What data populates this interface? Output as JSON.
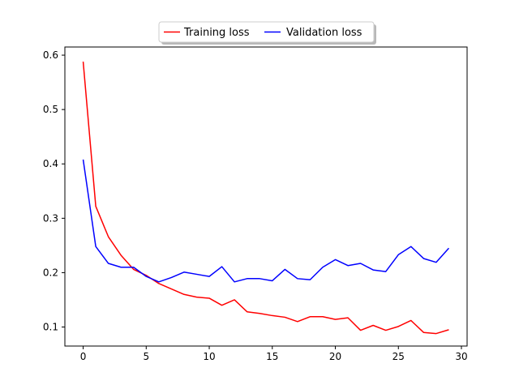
{
  "chart_data": {
    "type": "line",
    "title": "",
    "xlabel": "",
    "ylabel": "",
    "xlim": [
      -1.45,
      30.45
    ],
    "ylim": [
      0.065,
      0.615
    ],
    "xticks": [
      0,
      5,
      10,
      15,
      20,
      25,
      30
    ],
    "yticks": [
      0.1,
      0.2,
      0.3,
      0.4,
      0.5,
      0.6
    ],
    "grid": false,
    "legend": {
      "placement": "top-center-outside",
      "ncol": 2
    },
    "x": [
      0,
      1,
      2,
      3,
      4,
      5,
      6,
      7,
      8,
      9,
      10,
      11,
      12,
      13,
      14,
      15,
      16,
      17,
      18,
      19,
      20,
      21,
      22,
      23,
      24,
      25,
      26,
      27,
      28,
      29
    ],
    "series": [
      {
        "name": "Training loss",
        "color": "#ff0000",
        "values": [
          0.588,
          0.322,
          0.266,
          0.232,
          0.206,
          0.195,
          0.18,
          0.17,
          0.16,
          0.155,
          0.153,
          0.14,
          0.15,
          0.128,
          0.125,
          0.121,
          0.118,
          0.11,
          0.119,
          0.119,
          0.114,
          0.117,
          0.094,
          0.103,
          0.094,
          0.101,
          0.112,
          0.09,
          0.088,
          0.095
        ]
      },
      {
        "name": "Validation loss",
        "color": "#0000ff",
        "values": [
          0.408,
          0.248,
          0.217,
          0.21,
          0.21,
          0.193,
          0.183,
          0.191,
          0.201,
          0.197,
          0.193,
          0.211,
          0.183,
          0.189,
          0.189,
          0.185,
          0.206,
          0.189,
          0.187,
          0.21,
          0.224,
          0.213,
          0.217,
          0.205,
          0.202,
          0.233,
          0.248,
          0.226,
          0.219,
          0.245
        ]
      }
    ]
  }
}
